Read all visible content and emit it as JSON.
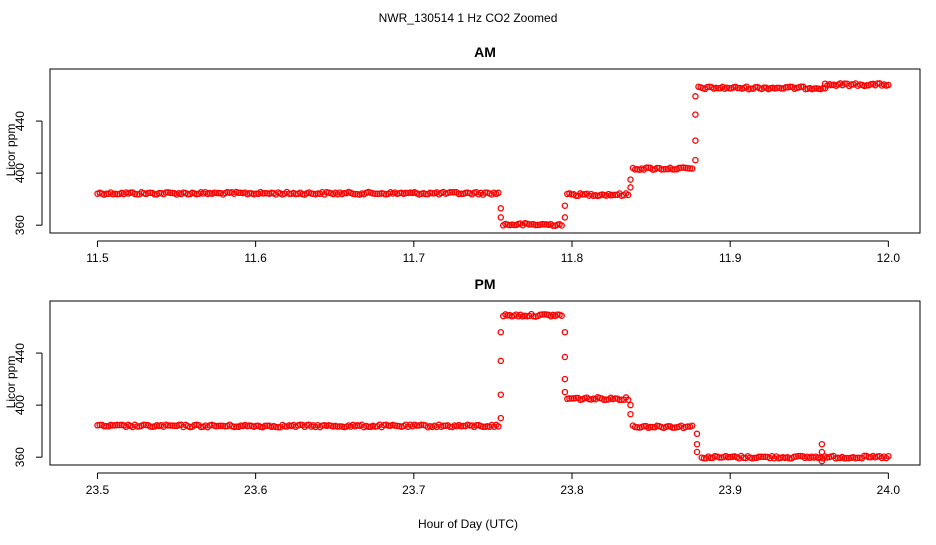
{
  "title": "NWR_130514  1 Hz CO2 Zoomed",
  "xlabel": "Hour of Day (UTC)",
  "chart_data": [
    {
      "type": "scatter",
      "title": "AM",
      "ylabel": "Licor ppm",
      "xlim": [
        11.47,
        12.02
      ],
      "ylim": [
        354,
        480
      ],
      "x_ticks": [
        11.5,
        11.6,
        11.7,
        11.8,
        11.9,
        12.0
      ],
      "x_tick_labels": [
        "11.5",
        "11.6",
        "11.7",
        "11.8",
        "11.9",
        "12.0"
      ],
      "y_ticks": [
        360,
        400,
        440
      ],
      "y_tick_labels": [
        "360",
        "400",
        "440"
      ],
      "color": "#ff0000",
      "marker": "open-circle",
      "grid": false,
      "segments": [
        {
          "x_start": 11.5,
          "x_end": 11.7535,
          "y": 384.5
        },
        {
          "x_start": 11.7565,
          "x_end": 11.7935,
          "y": 360.5
        },
        {
          "x_start": 11.797,
          "x_end": 11.8355,
          "y": 383.5
        },
        {
          "x_start": 11.8385,
          "x_end": 11.876,
          "y": 403.5
        },
        {
          "x_start": 11.88,
          "x_end": 11.96,
          "y": 465.5
        },
        {
          "x_start": 11.96,
          "x_end": 12.0,
          "y": 468.0
        }
      ],
      "transition_points": [
        {
          "x": 11.755,
          "y": 373
        },
        {
          "x": 11.755,
          "y": 366
        },
        {
          "x": 11.7955,
          "y": 366
        },
        {
          "x": 11.7955,
          "y": 375
        },
        {
          "x": 11.837,
          "y": 389
        },
        {
          "x": 11.837,
          "y": 395
        },
        {
          "x": 11.878,
          "y": 410
        },
        {
          "x": 11.878,
          "y": 425
        },
        {
          "x": 11.878,
          "y": 445
        },
        {
          "x": 11.878,
          "y": 459
        }
      ]
    },
    {
      "type": "scatter",
      "title": "PM",
      "ylabel": "Licor ppm",
      "xlim": [
        23.47,
        24.02
      ],
      "ylim": [
        354,
        480
      ],
      "x_ticks": [
        23.5,
        23.6,
        23.7,
        23.8,
        23.9,
        24.0
      ],
      "x_tick_labels": [
        "23.5",
        "23.6",
        "23.7",
        "23.8",
        "23.9",
        "24.0"
      ],
      "y_ticks": [
        360,
        400,
        440
      ],
      "y_tick_labels": [
        "360",
        "400",
        "440"
      ],
      "color": "#ff0000",
      "marker": "open-circle",
      "grid": false,
      "segments": [
        {
          "x_start": 23.5,
          "x_end": 23.7535,
          "y": 384.0
        },
        {
          "x_start": 23.7565,
          "x_end": 23.7935,
          "y": 469.0
        },
        {
          "x_start": 23.797,
          "x_end": 23.8355,
          "y": 405.0
        },
        {
          "x_start": 23.8385,
          "x_end": 23.876,
          "y": 383.5
        },
        {
          "x_start": 23.882,
          "x_end": 24.0,
          "y": 360.0
        }
      ],
      "transition_points": [
        {
          "x": 23.755,
          "y": 390
        },
        {
          "x": 23.755,
          "y": 408
        },
        {
          "x": 23.755,
          "y": 434
        },
        {
          "x": 23.755,
          "y": 456
        },
        {
          "x": 23.7955,
          "y": 456
        },
        {
          "x": 23.7955,
          "y": 437
        },
        {
          "x": 23.7955,
          "y": 420
        },
        {
          "x": 23.7955,
          "y": 410
        },
        {
          "x": 23.837,
          "y": 400
        },
        {
          "x": 23.837,
          "y": 393
        },
        {
          "x": 23.879,
          "y": 378
        },
        {
          "x": 23.879,
          "y": 370
        },
        {
          "x": 23.879,
          "y": 364
        },
        {
          "x": 23.958,
          "y": 370
        },
        {
          "x": 23.958,
          "y": 364
        },
        {
          "x": 23.958,
          "y": 357
        }
      ]
    }
  ]
}
